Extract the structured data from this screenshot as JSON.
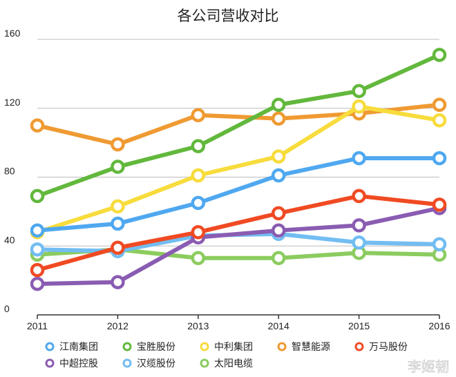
{
  "chart_data": {
    "type": "line",
    "title": "各公司营收对比",
    "xlabel": "",
    "ylabel": "",
    "x": [
      "2011",
      "2012",
      "2013",
      "2014",
      "2015",
      "2016"
    ],
    "ylim": [
      0,
      160
    ],
    "yticks": [
      0,
      40,
      80,
      120,
      160
    ],
    "grid": "horizontal",
    "legend_position": "bottom",
    "series": [
      {
        "name": "江南集团",
        "color": "#4fa8f0",
        "values": [
          49,
          53,
          65,
          81,
          91,
          91
        ]
      },
      {
        "name": "宝胜股份",
        "color": "#62b83c",
        "values": [
          69,
          86,
          98,
          122,
          130,
          151
        ]
      },
      {
        "name": "中利集团",
        "color": "#f7dc3c",
        "values": [
          48,
          63,
          81,
          92,
          121,
          113
        ]
      },
      {
        "name": "智慧能源",
        "color": "#ef9a32",
        "values": [
          110,
          99,
          116,
          114,
          117,
          122
        ]
      },
      {
        "name": "万马股份",
        "color": "#f04a23",
        "values": [
          26,
          39,
          48,
          59,
          69,
          64
        ]
      },
      {
        "name": "中超控股",
        "color": "#8a5cb2",
        "values": [
          18,
          19,
          45,
          49,
          52,
          62
        ]
      },
      {
        "name": "汉缆股份",
        "color": "#72bdf2",
        "values": [
          38,
          37,
          46,
          47,
          42,
          41
        ]
      },
      {
        "name": "太阳电缆",
        "color": "#8bcc5f",
        "values": [
          35,
          38,
          33,
          33,
          36,
          35
        ]
      }
    ]
  },
  "watermark": "李姬韧"
}
